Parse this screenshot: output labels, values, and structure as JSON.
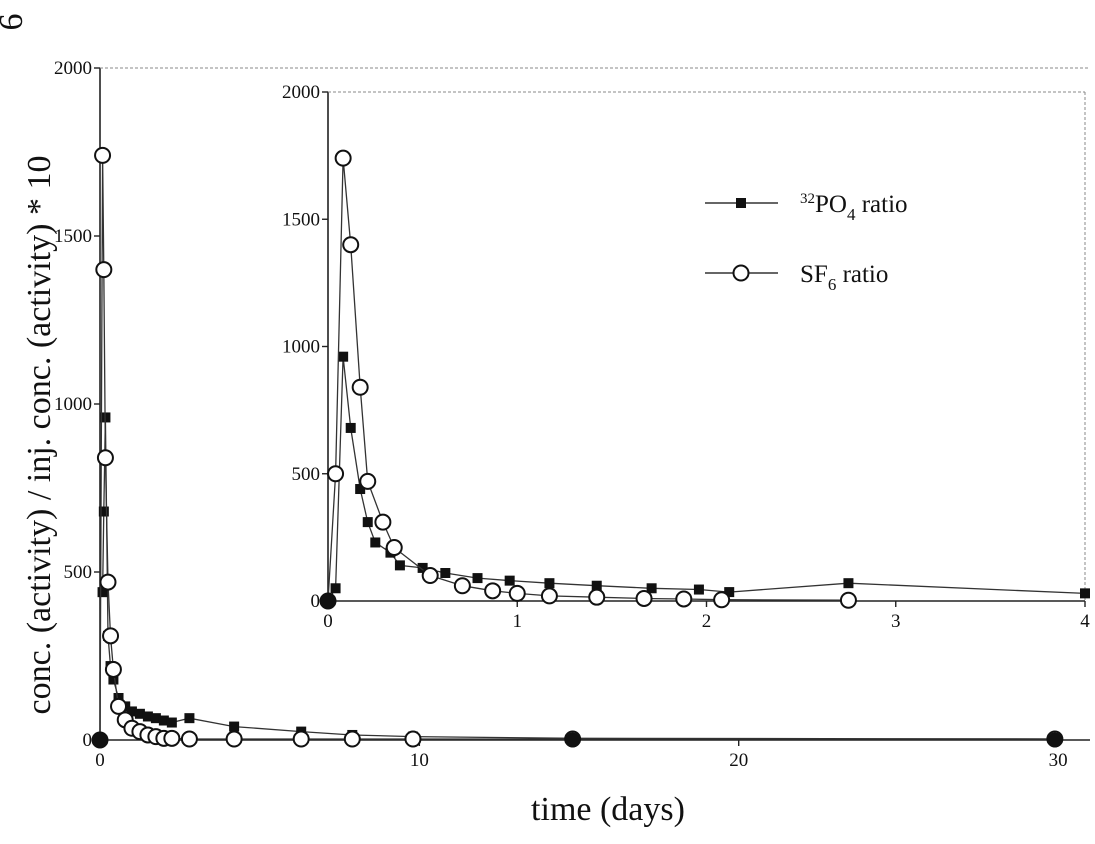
{
  "chart_data": [
    {
      "id": "main",
      "type": "scatter",
      "xlabel": "time (days)",
      "ylabel": "conc. (activity) / inj. conc. (activity) * 10",
      "ylabel_exponent": "6",
      "xlim": [
        0,
        31
      ],
      "ylim": [
        0,
        2000
      ],
      "x_ticks": [
        0,
        10,
        20,
        30
      ],
      "y_ticks": [
        0,
        500,
        1000,
        1500,
        2000
      ],
      "x_tick_labels": [
        "0",
        "10",
        "20",
        "30"
      ],
      "y_tick_labels": [
        "0",
        "500",
        "1000",
        "1500",
        "2000"
      ],
      "grid": false,
      "series": [
        {
          "marker": "filled-square",
          "x": [
            0.08,
            0.12,
            0.17,
            0.25,
            0.33,
            0.42,
            0.58,
            0.79,
            1.0,
            1.25,
            1.5,
            1.75,
            2.0,
            2.25,
            2.8,
            4.2,
            6.3,
            7.9,
            9.8,
            14.8,
            29.9
          ],
          "y": [
            440,
            680,
            960,
            310,
            220,
            180,
            125,
            100,
            85,
            78,
            70,
            65,
            58,
            52,
            65,
            40,
            25,
            15,
            10,
            5,
            3
          ]
        },
        {
          "marker": "open-circle",
          "x": [
            0.0,
            0.08,
            0.12,
            0.17,
            0.25,
            0.33,
            0.42,
            0.58,
            0.79,
            1.0,
            1.25,
            1.5,
            1.75,
            2.0,
            2.25,
            2.8,
            4.2,
            6.3,
            7.9,
            9.8,
            14.8,
            29.9
          ],
          "y": [
            0,
            1740,
            1400,
            840,
            470,
            310,
            210,
            100,
            60,
            35,
            25,
            15,
            10,
            5,
            5,
            3,
            3,
            3,
            3,
            3,
            3,
            3
          ]
        },
        {
          "marker": "filled-circle",
          "x": [
            0.0,
            14.8,
            29.9
          ],
          "y": [
            0,
            0,
            0
          ]
        }
      ]
    },
    {
      "id": "inset",
      "type": "line",
      "xlim": [
        0,
        4
      ],
      "ylim": [
        0,
        2000
      ],
      "x_ticks": [
        0,
        1,
        2,
        3,
        4
      ],
      "y_ticks": [
        0,
        500,
        1000,
        1500,
        2000
      ],
      "x_tick_labels": [
        "0",
        "1",
        "2",
        "3",
        "4"
      ],
      "y_tick_labels": [
        "0",
        "500",
        "1000",
        "1500",
        "2000"
      ],
      "grid": false,
      "legend_placement": "top-right",
      "series": [
        {
          "name": "32PO4 ratio",
          "name_sup": "32",
          "name_main": "PO",
          "name_sub": "4",
          "name_rest": " ratio",
          "marker": "filled-square",
          "x": [
            0.0,
            0.04,
            0.08,
            0.12,
            0.17,
            0.21,
            0.25,
            0.33,
            0.38,
            0.5,
            0.62,
            0.79,
            0.96,
            1.17,
            1.42,
            1.71,
            1.96,
            2.12,
            2.75,
            4.0
          ],
          "y": [
            0,
            50,
            960,
            680,
            440,
            310,
            230,
            190,
            140,
            130,
            110,
            90,
            80,
            70,
            60,
            50,
            45,
            35,
            70,
            30
          ]
        },
        {
          "name": "SF6 ratio",
          "name_main": "SF",
          "name_sub": "6",
          "name_rest": " ratio",
          "marker": "open-circle",
          "x": [
            0.0,
            0.04,
            0.08,
            0.12,
            0.17,
            0.21,
            0.29,
            0.35,
            0.54,
            0.71,
            0.87,
            1.0,
            1.17,
            1.42,
            1.67,
            1.88,
            2.08,
            2.75
          ],
          "y": [
            0,
            500,
            1740,
            1400,
            840,
            470,
            310,
            210,
            100,
            60,
            40,
            30,
            20,
            15,
            10,
            8,
            5,
            3
          ]
        },
        {
          "marker": "filled-circle",
          "x": [
            0.0
          ],
          "y": [
            0
          ]
        }
      ]
    }
  ]
}
